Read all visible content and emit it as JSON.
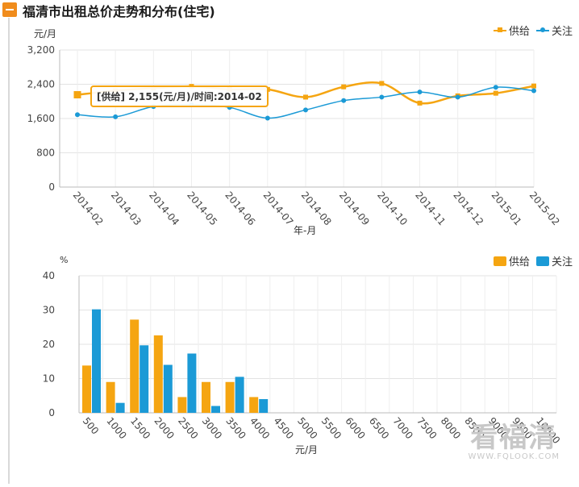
{
  "header": {
    "title": "福清市出租总价走势和分布(住宅)"
  },
  "chart_data": [
    {
      "type": "line",
      "ylabel": "元/月",
      "xlabel": "年-月",
      "ylim": [
        0,
        3200
      ],
      "yticks": [
        0,
        800,
        1600,
        2400,
        3200
      ],
      "categories": [
        "2014-02",
        "2014-03",
        "2014-04",
        "2014-05",
        "2014-06",
        "2014-07",
        "2014-08",
        "2014-09",
        "2014-10",
        "2014-11",
        "2014-12",
        "2015-01",
        "2015-02"
      ],
      "series": [
        {
          "name": "供给",
          "color": "#f5a511",
          "marker": "square",
          "values": [
            2155,
            2250,
            2310,
            2350,
            2280,
            2280,
            2100,
            2340,
            2420,
            1960,
            2130,
            2190,
            2360
          ]
        },
        {
          "name": "关注",
          "color": "#1b9ad6",
          "marker": "circle",
          "values": [
            1690,
            1640,
            1880,
            1920,
            1860,
            1610,
            1800,
            2020,
            2100,
            2220,
            2100,
            2330,
            2250
          ]
        }
      ],
      "legend": "top-right",
      "grid": true,
      "tooltip": {
        "text": "[供给] 2,155(元/月)/时间:2014-02"
      }
    },
    {
      "type": "bar",
      "ylabel": "%",
      "xlabel": "元/月",
      "ylim": [
        0,
        40
      ],
      "yticks": [
        0,
        10,
        20,
        30,
        40
      ],
      "categories": [
        "500",
        "1000",
        "1500",
        "2000",
        "2500",
        "3000",
        "3500",
        "4000",
        "4500",
        "5000",
        "5500",
        "6000",
        "6500",
        "7000",
        "7500",
        "8000",
        "8500",
        "9000",
        "9500",
        "10000"
      ],
      "series": [
        {
          "name": "供给",
          "color": "#f5a511",
          "values": [
            13.8,
            9,
            27.2,
            22.6,
            4.6,
            9,
            9,
            4.6,
            0,
            0,
            0,
            0,
            0,
            0,
            0,
            0,
            0,
            0,
            0,
            0
          ]
        },
        {
          "name": "关注",
          "color": "#1b9ad6",
          "values": [
            30.2,
            2.9,
            19.7,
            14,
            17.3,
            2,
            10.5,
            4,
            0,
            0,
            0,
            0,
            0,
            0,
            0,
            0,
            0,
            0,
            0,
            0
          ]
        }
      ],
      "legend": "top-right",
      "grid": true
    }
  ],
  "watermark": {
    "text": "看福清",
    "url": "WWW.FQLOOK.COM"
  }
}
